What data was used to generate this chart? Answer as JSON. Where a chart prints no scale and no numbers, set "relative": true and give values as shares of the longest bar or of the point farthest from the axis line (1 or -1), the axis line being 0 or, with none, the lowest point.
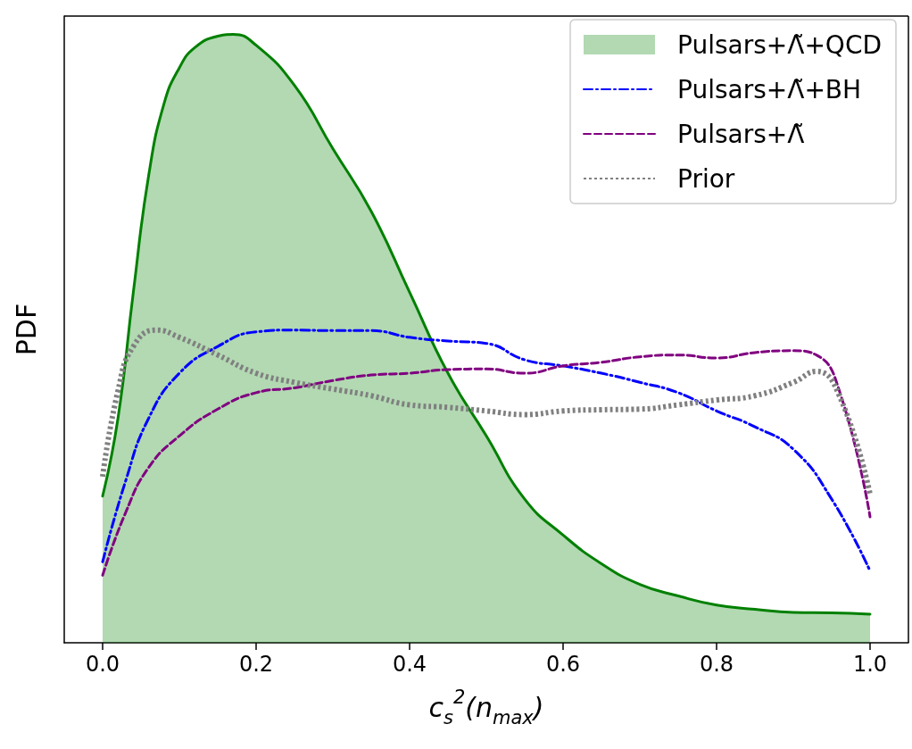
{
  "chart_data": {
    "type": "line",
    "relative": true,
    "xlabel": "c$_{s}$$^{2}$(n$_{max}$)",
    "ylabel": "PDF",
    "xlim": [
      -0.05,
      1.05
    ],
    "xticks": [
      {
        "value": 0,
        "label": "0.0"
      },
      0.2,
      0.4,
      0.6,
      0.8,
      {
        "value": 1,
        "label": "1.0"
      }
    ],
    "grid": false,
    "legend": "top right",
    "marker": "none",
    "series": [
      {
        "name": "Pulsars+Λ̃+QCD",
        "type": "area",
        "color": "#008000",
        "line_style": "solid",
        "x": [
          0,
          0.02,
          0.04,
          0.06,
          0.08,
          0.1,
          0.12,
          0.15,
          0.17,
          0.2,
          0.25,
          0.3,
          0.35,
          0.4,
          0.45,
          0.5,
          0.55,
          0.6,
          0.65,
          0.7,
          0.75,
          0.8,
          0.85,
          0.9,
          0.95,
          1.0
        ],
        "values": [
          0.241,
          0.369,
          0.576,
          0.768,
          0.886,
          0.945,
          0.978,
          0.997,
          1.0,
          0.982,
          0.916,
          0.812,
          0.709,
          0.576,
          0.443,
          0.34,
          0.236,
          0.177,
          0.13,
          0.096,
          0.077,
          0.062,
          0.055,
          0.05,
          0.049,
          0.047
        ]
      },
      {
        "name": "Pulsars+Λ̃+BH",
        "type": "line",
        "color": "#0000ff",
        "line_style": "dashdot",
        "x": [
          0,
          0.03,
          0.06,
          0.1,
          0.15,
          0.2,
          0.25,
          0.3,
          0.35,
          0.4,
          0.45,
          0.5,
          0.55,
          0.6,
          0.65,
          0.7,
          0.75,
          0.8,
          0.85,
          0.9,
          0.95,
          1.0
        ],
        "values": [
          0.133,
          0.266,
          0.369,
          0.443,
          0.487,
          0.511,
          0.514,
          0.513,
          0.513,
          0.502,
          0.496,
          0.492,
          0.465,
          0.455,
          0.443,
          0.428,
          0.411,
          0.381,
          0.355,
          0.318,
          0.236,
          0.118
        ]
      },
      {
        "name": "Pulsars+Λ̃",
        "type": "line",
        "color": "#800080",
        "line_style": "dashed",
        "x": [
          0,
          0.03,
          0.06,
          0.1,
          0.15,
          0.2,
          0.25,
          0.3,
          0.35,
          0.4,
          0.45,
          0.5,
          0.55,
          0.6,
          0.65,
          0.7,
          0.75,
          0.8,
          0.85,
          0.9,
          0.93,
          0.96,
          1.0
        ],
        "values": [
          0.111,
          0.214,
          0.288,
          0.34,
          0.384,
          0.411,
          0.419,
          0.431,
          0.44,
          0.443,
          0.449,
          0.45,
          0.443,
          0.455,
          0.461,
          0.47,
          0.473,
          0.468,
          0.477,
          0.48,
          0.473,
          0.414,
          0.207
        ]
      },
      {
        "name": "Prior",
        "type": "line",
        "color": "#808080",
        "line_style": "dotted",
        "x": [
          0,
          0.02,
          0.04,
          0.07,
          0.1,
          0.15,
          0.2,
          0.25,
          0.3,
          0.35,
          0.4,
          0.45,
          0.5,
          0.55,
          0.6,
          0.65,
          0.7,
          0.75,
          0.8,
          0.85,
          0.9,
          0.93,
          0.96,
          1.0
        ],
        "values": [
          0.273,
          0.414,
          0.487,
          0.514,
          0.502,
          0.473,
          0.443,
          0.428,
          0.417,
          0.406,
          0.391,
          0.387,
          0.381,
          0.375,
          0.381,
          0.383,
          0.384,
          0.391,
          0.399,
          0.406,
          0.428,
          0.446,
          0.406,
          0.244
        ]
      }
    ]
  }
}
